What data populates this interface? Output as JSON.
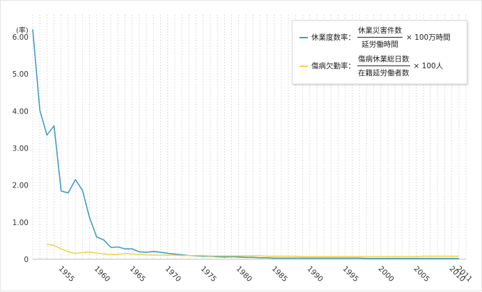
{
  "chart_data": {
    "type": "line",
    "y_unit_label": "(率)",
    "x": [
      1951,
      1952,
      1953,
      1954,
      1955,
      1956,
      1957,
      1958,
      1959,
      1960,
      1961,
      1962,
      1963,
      1964,
      1965,
      1966,
      1967,
      1968,
      1969,
      1970,
      1971,
      1972,
      1973,
      1974,
      1975,
      1976,
      1977,
      1978,
      1979,
      1980,
      1981,
      1982,
      1983,
      1984,
      1985,
      1986,
      1987,
      1988,
      1989,
      1990,
      1991,
      1992,
      1993,
      1994,
      1995,
      1996,
      1997,
      1998,
      1999,
      2000,
      2001,
      2002,
      2003,
      2004,
      2005,
      2006,
      2007,
      2008,
      2009,
      2010,
      2011
    ],
    "x_tick_labels": [
      "1955",
      "1960",
      "1965",
      "1970",
      "1975",
      "1980",
      "1985",
      "1990",
      "1995",
      "2000",
      "2005",
      "2010",
      "2011"
    ],
    "x_tick_values": [
      1955,
      1960,
      1965,
      1970,
      1975,
      1980,
      1985,
      1990,
      1995,
      2000,
      2005,
      2010,
      2011
    ],
    "y_ticks": [
      "0",
      "1.00",
      "2.00",
      "3.00",
      "4.00",
      "5.00",
      "6.00"
    ],
    "y_tick_values": [
      0,
      1,
      2,
      3,
      4,
      5,
      6
    ],
    "ylim": [
      0,
      6.6
    ],
    "xlim": [
      1951,
      2012
    ],
    "grid": "vertical lines at every year",
    "legend_position": "top-right",
    "series": [
      {
        "name": "休業度数率",
        "color": "#3a9cc6",
        "values": [
          6.2,
          4.02,
          3.35,
          3.6,
          1.84,
          1.79,
          2.15,
          1.86,
          1.12,
          0.6,
          0.52,
          0.32,
          0.33,
          0.28,
          0.28,
          0.2,
          0.19,
          0.21,
          0.19,
          0.16,
          0.14,
          0.12,
          0.1,
          0.09,
          0.08,
          0.08,
          0.07,
          0.06,
          0.07,
          0.06,
          0.05,
          0.05,
          0.04,
          0.04,
          0.03,
          0.03,
          0.03,
          0.03,
          0.03,
          0.03,
          0.03,
          0.03,
          0.03,
          0.03,
          0.03,
          0.03,
          0.03,
          0.02,
          0.02,
          0.02,
          0.02,
          0.02,
          0.02,
          0.02,
          0.02,
          0.02,
          0.02,
          0.02,
          0.02,
          0.02,
          0.02
        ],
        "formula_numerator": "休業災害件数",
        "formula_denominator": "延労働時間",
        "formula_multiplier": "× 100万時間"
      },
      {
        "name": "傷病欠勤率",
        "color": "#f0d54a",
        "values": [
          null,
          null,
          0.4,
          0.37,
          0.28,
          0.2,
          0.16,
          0.18,
          0.2,
          0.17,
          0.14,
          0.13,
          0.13,
          0.15,
          0.14,
          0.13,
          0.12,
          0.11,
          0.11,
          0.11,
          0.11,
          0.1,
          0.1,
          0.1,
          0.1,
          0.09,
          0.09,
          0.09,
          0.09,
          0.09,
          0.09,
          0.09,
          0.09,
          0.08,
          0.08,
          0.08,
          0.08,
          0.08,
          0.07,
          0.07,
          0.07,
          0.07,
          0.07,
          0.07,
          0.07,
          0.07,
          0.07,
          0.07,
          0.07,
          0.07,
          0.07,
          0.07,
          0.07,
          0.07,
          0.07,
          0.08,
          0.08,
          0.08,
          0.08,
          0.08,
          0.08
        ],
        "formula_numerator": "傷病休業総日数",
        "formula_denominator": "在籍延労働者数",
        "formula_multiplier": "× 100人"
      }
    ]
  }
}
